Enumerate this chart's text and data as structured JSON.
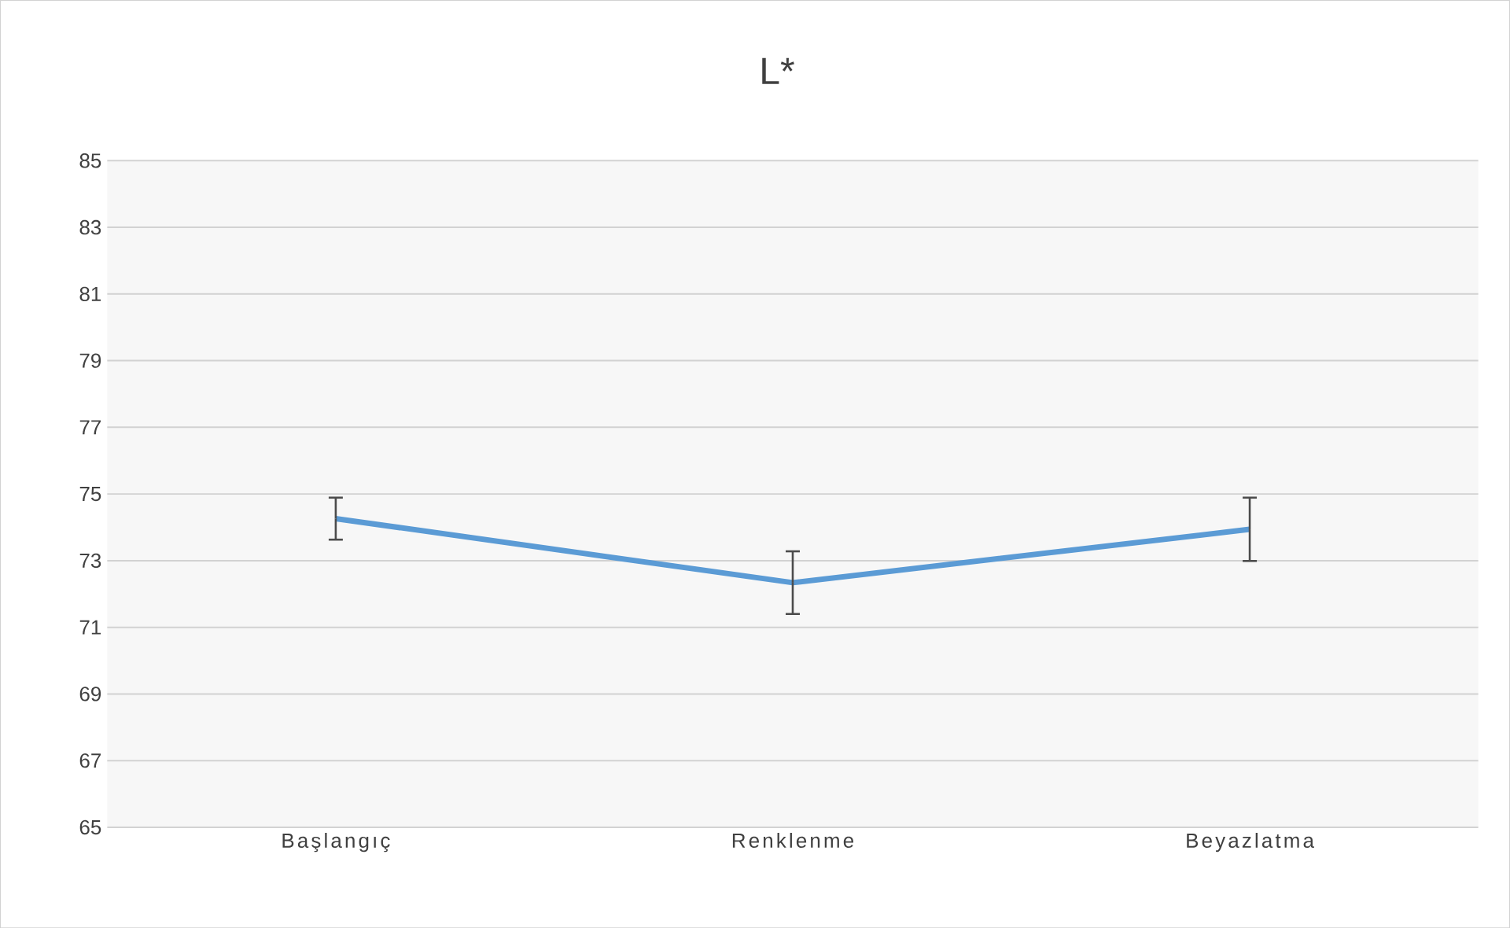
{
  "chart_data": {
    "type": "line",
    "title": "L*",
    "categories": [
      "Başlangıç",
      "Renklenme",
      "Beyazlatma"
    ],
    "series": [
      {
        "color": "#5b9bd5",
        "values": [
          74.26,
          72.34,
          73.94
        ],
        "errors": [
          0.63,
          0.94,
          0.95
        ]
      }
    ],
    "ylim": [
      65,
      85
    ],
    "yticks": [
      65,
      67,
      69,
      71,
      73,
      75,
      77,
      79,
      81,
      83,
      85
    ],
    "grid": "y",
    "legend": false,
    "marker": "none",
    "line_style": "solid"
  }
}
